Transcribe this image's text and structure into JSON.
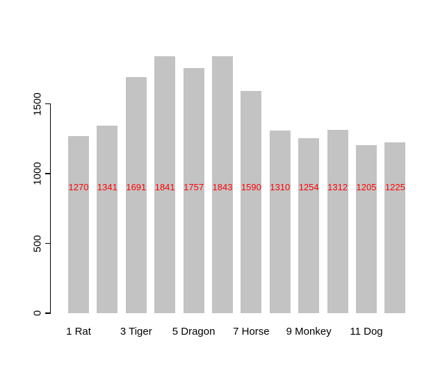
{
  "chart_data": {
    "type": "bar",
    "values": [
      1270,
      1341,
      1691,
      1841,
      1757,
      1843,
      1590,
      1310,
      1254,
      1312,
      1205,
      1225
    ],
    "value_labels": [
      "1270",
      "1341",
      "1691",
      "1841",
      "1757",
      "1843",
      "1590",
      "1310",
      "1254",
      "1312",
      "1205",
      "1225"
    ],
    "x_tick_labels": [
      {
        "bar_index": 0,
        "label": "1 Rat"
      },
      {
        "bar_index": 2,
        "label": "3 Tiger"
      },
      {
        "bar_index": 4,
        "label": "5 Dragon"
      },
      {
        "bar_index": 6,
        "label": "7 Horse"
      },
      {
        "bar_index": 8,
        "label": "9 Monkey"
      },
      {
        "bar_index": 10,
        "label": "11 Dog"
      }
    ],
    "y_ticks": [
      {
        "value": 0,
        "label": "0"
      },
      {
        "value": 500,
        "label": "500"
      },
      {
        "value": 1000,
        "label": "1000"
      },
      {
        "value": 1500,
        "label": "1500"
      }
    ],
    "y_axis_shown_range": [
      0,
      1500
    ],
    "title": "",
    "xlabel": "",
    "ylabel": "",
    "grid": false,
    "legend": null,
    "colors": {
      "bar_fill": "#c3c3c3",
      "value_label": "#ff0000",
      "axis": "#000000",
      "tick_label": "#000000",
      "background": "#ffffff"
    }
  }
}
